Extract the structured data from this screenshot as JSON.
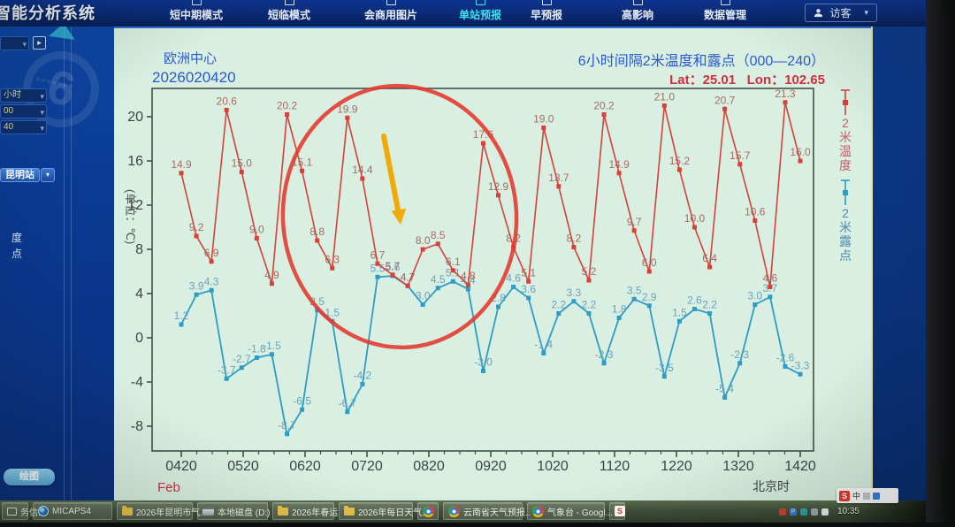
{
  "nav": {
    "title": "智能分析系统",
    "items": [
      {
        "label": "短中期模式",
        "active": false
      },
      {
        "label": "短临模式",
        "active": false
      },
      {
        "label": "会商用图片",
        "active": false
      },
      {
        "label": "单站预报",
        "active": true
      },
      {
        "label": "早预报",
        "active": false
      },
      {
        "label": "高影响",
        "active": false
      },
      {
        "label": "数据管理",
        "active": false
      }
    ],
    "user": {
      "label": "访客",
      "caret": "▾"
    }
  },
  "sidebar": {
    "top_select_value": "",
    "next_button": "▸",
    "selects": [
      {
        "value": "小时",
        "caret": "▾"
      },
      {
        "value": "00",
        "caret": "▾"
      },
      {
        "value": "40",
        "caret": "▾"
      }
    ],
    "station_button": "昆明站",
    "station_caret": "▾",
    "partial_labels": [
      "度",
      "点"
    ],
    "draw_button": "绘图",
    "watermark_glyph": "6",
    "watermark_dots": "ooooooo"
  },
  "chart_header": {
    "source": "欧洲中心",
    "run_time": "2026020420",
    "title": "6小时间隔2米温度和露点（000—240）",
    "lat": "Lat：25.01",
    "lon": "Lon：102.65"
  },
  "chart_data": {
    "type": "line",
    "interval_hours": 6,
    "ylabel": "(单位：℃)",
    "ylim": [
      -10,
      22
    ],
    "y_ticks": [
      20,
      16,
      12,
      8,
      4,
      0,
      -4,
      -8
    ],
    "x_labels": [
      "0420",
      "0520",
      "0620",
      "0720",
      "0820",
      "0920",
      "1020",
      "1120",
      "1220",
      "1320",
      "1420"
    ],
    "month_label": "Feb",
    "timezone_label": "北京时",
    "grid": false,
    "legend_position": "right-vertical",
    "series": [
      {
        "name": "2米露点",
        "color": "#2f9cc6",
        "label_color": "#6ba2bd",
        "values": [
          1.2,
          3.9,
          4.3,
          -3.7,
          -2.7,
          -1.8,
          -1.5,
          -8.7,
          -6.5,
          2.5,
          1.5,
          -6.7,
          -4.2,
          5.5,
          5.6,
          4.7,
          3.0,
          4.5,
          5.1,
          4.4,
          -3.0,
          2.8,
          4.6,
          3.6,
          -1.4,
          2.2,
          3.3,
          2.2,
          -2.3,
          1.8,
          3.5,
          2.9,
          -3.5,
          1.5,
          2.6,
          2.2,
          -5.4,
          -2.3,
          3.0,
          3.7,
          -2.6,
          -3.3
        ]
      },
      {
        "name": "2米温度",
        "color": "#d8403a",
        "label_color": "#a96a63",
        "values": [
          14.9,
          9.2,
          6.9,
          20.6,
          15.0,
          9.0,
          4.9,
          20.2,
          15.1,
          8.8,
          6.3,
          19.9,
          14.4,
          6.7,
          5.7,
          4.7,
          8.0,
          8.5,
          6.1,
          4.8,
          17.6,
          12.9,
          8.2,
          5.1,
          19.0,
          13.7,
          8.2,
          5.2,
          20.2,
          14.9,
          9.7,
          6.0,
          21.0,
          15.2,
          10.0,
          6.4,
          20.7,
          15.7,
          10.6,
          4.6,
          21.3,
          16.0
        ]
      }
    ],
    "legend": [
      {
        "label": "2米温度",
        "color": "#d8403a",
        "text_color": "#c4606a"
      },
      {
        "label": "2米露点",
        "color": "#2f9cc6",
        "text_color": "#4f87b0"
      }
    ],
    "annotations": {
      "highlight_circle_color": "#e5372b",
      "arrow_color": "#f0ab07"
    }
  },
  "sogou_bar": {
    "logo": "S",
    "lang": "中"
  },
  "taskbar": {
    "items": [
      {
        "label": "务信..",
        "icon": "window-icon",
        "w": 30
      },
      {
        "label": "MICAPS4",
        "icon": "micaps-icon",
        "w": 90
      },
      {
        "label": "2026年昆明市气..",
        "icon": "folder-icon",
        "w": 86
      },
      {
        "label": "本地磁盘 (D:)",
        "icon": "disk-icon",
        "w": 80
      },
      {
        "label": "2026年春运",
        "icon": "folder-icon",
        "w": 70
      },
      {
        "label": "2026年每日天气..",
        "icon": "folder-icon",
        "w": 84
      },
      {
        "label": "",
        "icon": "chrome-icon",
        "w": 24
      },
      {
        "label": "云南省天气预报..",
        "icon": "chrome-icon",
        "w": 90
      },
      {
        "label": "气象台 - Googl...",
        "icon": "chrome-icon",
        "w": 88
      },
      {
        "label": "",
        "icon": "sogou-icon",
        "w": 18
      }
    ],
    "tray_time": "10:35"
  }
}
